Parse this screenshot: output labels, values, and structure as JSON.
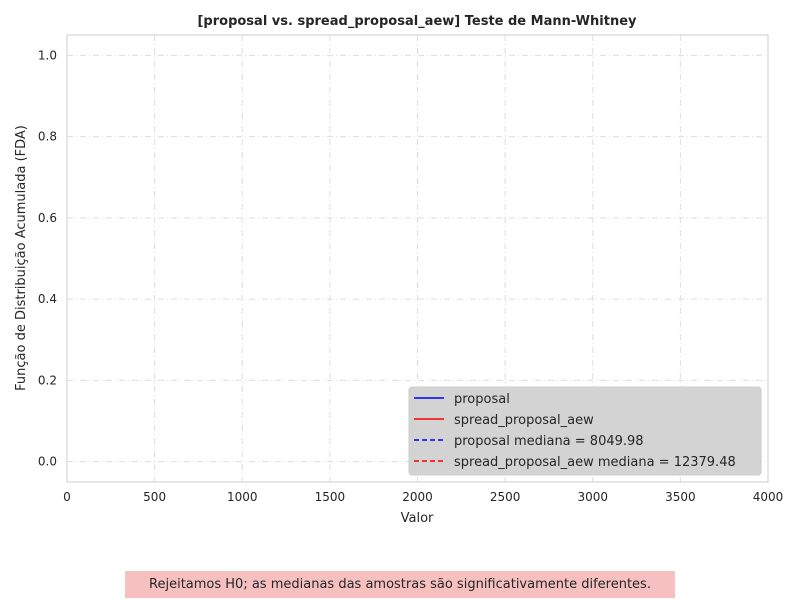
{
  "chart_data": {
    "type": "line",
    "title": "[proposal vs. spread_proposal_aew] Teste de Mann-Whitney",
    "xlabel": "Valor",
    "ylabel": "Função de Distribuição Acumulada (FDA)",
    "xlim": [
      0,
      4000
    ],
    "ylim": [
      -0.05,
      1.05
    ],
    "xticks": [
      0,
      500,
      1000,
      1500,
      2000,
      2500,
      3000,
      3500,
      4000
    ],
    "yticks": [
      0.0,
      0.2,
      0.4,
      0.6,
      0.8,
      1.0
    ],
    "ytick_labels": [
      "0.0",
      "0.2",
      "0.4",
      "0.6",
      "0.8",
      "1.0"
    ],
    "grid": true,
    "legend_position": "bottom-right",
    "series": [
      {
        "name": "proposal",
        "style": "solid",
        "color": "#0000ff",
        "x": [],
        "y": []
      },
      {
        "name": "spread_proposal_aew",
        "style": "solid",
        "color": "#ff0000",
        "x": [],
        "y": []
      }
    ],
    "medians": [
      {
        "label": "proposal mediana = 8049.98",
        "value": 8049.98,
        "style": "dashed",
        "color": "#0000ff"
      },
      {
        "label": "spread_proposal_aew mediana = 12379.48",
        "value": 12379.48,
        "style": "dashed",
        "color": "#ff0000"
      }
    ]
  },
  "conclusion": {
    "text": "Rejeitamos H0; as medianas das amostras são significativamente diferentes.",
    "background": "#f7c0c0"
  }
}
